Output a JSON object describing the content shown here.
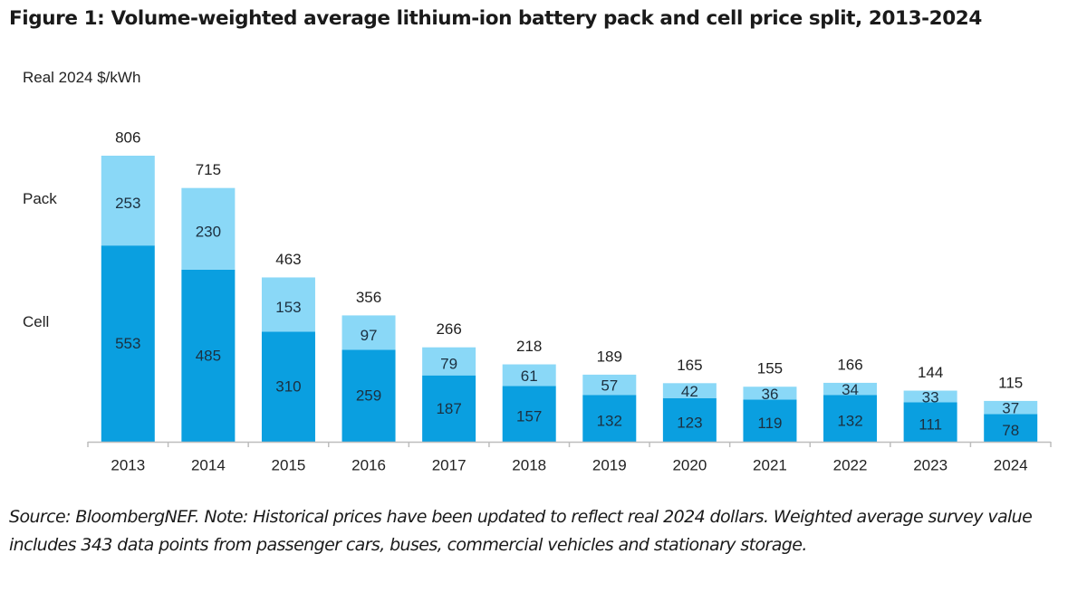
{
  "chart_data": {
    "type": "bar",
    "stacked": true,
    "title": "Figure 1: Volume-weighted average lithium-ion battery pack and cell price split, 2013-2024",
    "ylabel": "Real 2024 $/kWh",
    "xlabel": "",
    "ylim": [
      0,
      806
    ],
    "grid": false,
    "legend": {
      "placement": "left",
      "entries": [
        "Pack",
        "Cell"
      ]
    },
    "categories": [
      "2013",
      "2014",
      "2015",
      "2016",
      "2017",
      "2018",
      "2019",
      "2020",
      "2021",
      "2022",
      "2023",
      "2024"
    ],
    "series": [
      {
        "name": "Cell",
        "color": "#0a9fe0",
        "values": [
          553,
          485,
          310,
          259,
          187,
          157,
          132,
          123,
          119,
          132,
          111,
          78
        ]
      },
      {
        "name": "Pack",
        "color": "#8ad8f7",
        "values": [
          253,
          230,
          153,
          97,
          79,
          61,
          57,
          42,
          36,
          34,
          33,
          37
        ]
      }
    ],
    "totals": [
      806,
      715,
      463,
      356,
      266,
      218,
      189,
      165,
      155,
      166,
      144,
      115
    ]
  },
  "note": "Source: BloombergNEF. Note: Historical prices have been updated to reflect real 2024 dollars. Weighted average survey value includes 343 data points from passenger cars, buses, commercial vehicles and stationary storage."
}
